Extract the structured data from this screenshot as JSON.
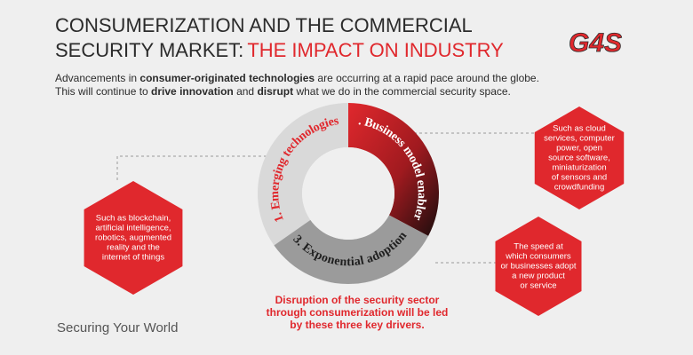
{
  "header": {
    "title_line1": "CONSUMERIZATION AND THE COMMERCIAL",
    "title_line2": "SECURITY MARKET:",
    "title_highlight": "THE IMPACT ON INDUSTRY",
    "logo": "G4S"
  },
  "intro": {
    "lines": [
      [
        {
          "text": "Advancements in ",
          "bold": false
        },
        {
          "text": "consumer-originated technologies",
          "bold": true
        },
        {
          "text": " are occurring at a rapid pace around the globe.",
          "bold": false
        }
      ],
      [
        {
          "text": "This will continue to ",
          "bold": false
        },
        {
          "text": "drive innovation",
          "bold": true
        },
        {
          "text": " and ",
          "bold": false
        },
        {
          "text": "disrupt",
          "bold": true
        },
        {
          "text": " what we do in the commercial security space.",
          "bold": false
        }
      ]
    ]
  },
  "cycle": {
    "segments": [
      {
        "label": "1. Emerging technologies"
      },
      {
        "label": "2. Business model enablers"
      },
      {
        "label": "3. Exponential adoption"
      }
    ]
  },
  "hexagons": [
    {
      "lines": [
        "Such as blockchain,",
        "artificial intelligence,",
        "robotics, augmented",
        "reality and the",
        "internet of things"
      ]
    },
    {
      "lines": [
        "Such as cloud",
        "services, computer",
        "power, open",
        "source software,",
        "miniaturization",
        "of sensors and",
        "crowdfunding"
      ]
    },
    {
      "lines": [
        "The speed at",
        "which consumers",
        "or businesses adopt",
        "a new product",
        "or service"
      ]
    }
  ],
  "caption": {
    "lines": [
      "Disruption of the security sector",
      "through consumerization will be led",
      "by these three key drivers."
    ]
  },
  "footer": {
    "tagline": "Securing Your World"
  }
}
